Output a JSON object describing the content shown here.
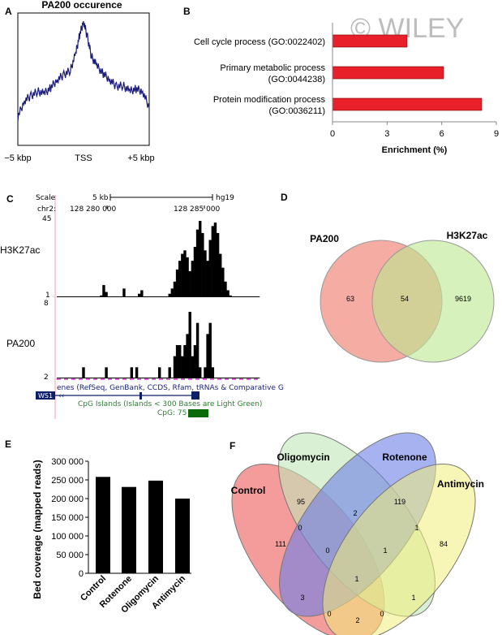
{
  "watermark": "© WILEY",
  "panels": {
    "A": {
      "letter": "A",
      "title": "PA200 occurence",
      "ticks": [
        "−5 kbp",
        "TSS",
        "+5 kbp"
      ],
      "line_color": "#1a1a7a"
    },
    "B": {
      "letter": "B",
      "xlabel": "Enrichment (%)",
      "ticks": [
        "0",
        "3",
        "6",
        "9"
      ],
      "bar_color": "#e8202a"
    },
    "C": {
      "letter": "C",
      "scale_label": "Scale",
      "scale_value": "5 kb",
      "genome": "hg19",
      "chr_label": "chr2:",
      "coord1": "128 280 000",
      "coord2": "128 285 000",
      "t1_max": "45",
      "t1_min": "1",
      "t2_max": "8",
      "t2_min": "2",
      "track1": "H3K27ac",
      "track2": "PA200",
      "genes_text": "enes (RefSeq, GenBank, CCDS, Rfam, tRNAs & Comparative G",
      "gene_name": "WS1",
      "cpg_title": "CpG Islands (Islands < 300 Bases are Light Green)",
      "cpg_label": "CpG: 75"
    },
    "D": {
      "letter": "D",
      "set1": "PA200",
      "set2": "H3K27ac",
      "only1": "63",
      "both": "54",
      "only2": "9619",
      "color1": "#f4a398",
      "color2": "#bde88f"
    },
    "E": {
      "letter": "E",
      "bar_color": "#000000"
    },
    "F": {
      "letter": "F",
      "labels": [
        "Control",
        "Oligomycin",
        "Rotenone",
        "Antimycin"
      ],
      "numbers": {
        "c_only": "111",
        "o_only": "95",
        "r_only": "119",
        "a_only": "84",
        "co": "0",
        "or": "2",
        "ra": "1",
        "ca": "2",
        "cr": "3",
        "oa": "1",
        "cor": "0",
        "ora": "1",
        "cra": "0",
        "coa": "0",
        "all": "1"
      },
      "colors": [
        "#f07070",
        "#bfe6b8",
        "#6c7fe8",
        "#f2ee7a"
      ]
    }
  },
  "chart_data": [
    {
      "panel": "A",
      "type": "line",
      "title": "PA200 occurence",
      "xlabel": "",
      "ylabel": "",
      "x_ticks": [
        "−5 kbp",
        "TSS",
        "+5 kbp"
      ],
      "xlim": [
        -5,
        5
      ],
      "series": [
        {
          "x": [
            -5,
            -4.5,
            -4,
            -3.5,
            -3,
            -2.5,
            -2,
            -1.5,
            -1,
            -0.6,
            -0.3,
            0,
            0.3,
            0.6,
            1,
            1.5,
            2,
            2.5,
            3,
            3.5,
            4,
            4.5,
            5
          ],
          "y": [
            0.18,
            0.32,
            0.36,
            0.4,
            0.38,
            0.43,
            0.5,
            0.54,
            0.58,
            0.72,
            0.88,
            1.0,
            0.86,
            0.7,
            0.62,
            0.55,
            0.5,
            0.44,
            0.45,
            0.4,
            0.42,
            0.4,
            0.26
          ]
        }
      ]
    },
    {
      "panel": "B",
      "type": "bar",
      "orientation": "horizontal",
      "categories": [
        "Cell cycle process (GO:0022402)",
        "Primary metabolic process (GO:0044238)",
        "Protein modification process (GO:0036211)"
      ],
      "values": [
        4.1,
        6.1,
        8.2
      ],
      "xlabel": "Enrichment (%)",
      "xlim": [
        0,
        9
      ],
      "x_ticks": [
        0,
        3,
        6,
        9
      ]
    },
    {
      "panel": "C",
      "type": "bar",
      "tracks": [
        {
          "name": "H3K27ac",
          "range": [
            1,
            45
          ],
          "values": [
            1,
            1,
            1,
            1,
            1,
            1,
            1,
            1,
            1,
            1,
            1,
            1,
            1,
            1,
            1,
            1,
            1,
            2,
            8,
            4,
            1,
            1,
            1,
            1,
            1,
            1,
            6,
            1,
            1,
            1,
            1,
            1,
            3,
            5,
            1,
            1,
            1,
            1,
            1,
            1,
            1,
            1,
            1,
            1,
            3,
            6,
            10,
            17,
            22,
            26,
            28,
            24,
            16,
            22,
            30,
            40,
            45,
            38,
            28,
            22,
            34,
            42,
            44,
            38,
            26,
            18,
            10,
            5,
            2,
            1,
            1,
            1,
            1,
            1,
            1,
            1,
            1,
            1,
            1,
            1
          ]
        },
        {
          "name": "PA200",
          "range": [
            2,
            8
          ],
          "values": [
            2,
            2,
            2,
            2,
            2,
            2,
            2,
            2,
            2,
            2,
            3,
            2,
            2,
            2,
            2,
            2,
            2,
            2,
            2,
            3,
            2,
            2,
            2,
            2,
            2,
            2,
            2,
            2,
            2,
            3,
            2,
            3,
            2,
            2,
            2,
            2,
            2,
            2,
            2,
            2,
            3,
            2,
            2,
            2,
            3,
            2,
            4,
            5,
            5,
            4,
            5,
            6,
            8,
            4,
            5,
            7,
            3,
            2,
            3,
            6,
            7,
            3,
            2,
            2,
            2,
            2,
            2,
            2,
            2,
            2,
            2,
            2,
            2,
            2,
            2,
            2,
            2,
            2,
            2,
            2
          ]
        }
      ]
    },
    {
      "panel": "D",
      "type": "venn",
      "sets": [
        "PA200",
        "H3K27ac"
      ],
      "values": {
        "PA200_only": 63,
        "both": 54,
        "H3K27ac_only": 9619
      }
    },
    {
      "panel": "E",
      "type": "bar",
      "categories": [
        "Control",
        "Rotenone",
        "Oligomycin",
        "Antimycin"
      ],
      "values": [
        258000,
        231000,
        248000,
        200000
      ],
      "ylabel": "Bed coverage (mapped reads)",
      "ylim": [
        0,
        300000
      ],
      "y_ticks": [
        "0",
        "50 000",
        "100 000",
        "150 000",
        "200 000",
        "250 000",
        "300 000"
      ]
    },
    {
      "panel": "F",
      "type": "venn",
      "sets": [
        "Control",
        "Oligomycin",
        "Rotenone",
        "Antimycin"
      ],
      "values": {
        "Control_only": 111,
        "Oligomycin_only": 95,
        "Rotenone_only": 119,
        "Antimycin_only": 84,
        "Control_Oligomycin": 0,
        "Oligomycin_Rotenone": 2,
        "Rotenone_Antimycin": 1,
        "Control_Antimycin": 2,
        "Control_Rotenone": 3,
        "Oligomycin_Antimycin": 1,
        "Control_Oligomycin_Rotenone": 0,
        "Oligomycin_Rotenone_Antimycin": 1,
        "Control_Rotenone_Antimycin": 0,
        "Control_Oligomycin_Antimycin": 0,
        "all": 1
      }
    }
  ]
}
